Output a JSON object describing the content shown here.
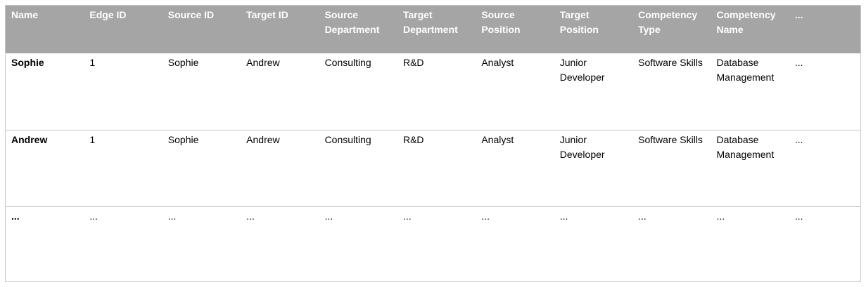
{
  "colors": {
    "header_background": "#a5a5a5",
    "header_text": "#ffffff",
    "row_border": "#c8c8c8"
  },
  "table": {
    "headers": [
      "Name",
      "Edge ID",
      "Source ID",
      "Target ID",
      "Source Department",
      "Target Department",
      "Source Position",
      "Target Position",
      "Competency Type",
      "Competency Name",
      "..."
    ],
    "rows": [
      [
        "Sophie",
        "1",
        "Sophie",
        "Andrew",
        "Consulting",
        "R&D",
        "Analyst",
        "Junior Developer",
        "Software Skills",
        "Database Management",
        "..."
      ],
      [
        "Andrew",
        "1",
        "Sophie",
        "Andrew",
        "Consulting",
        "R&D",
        "Analyst",
        "Junior Developer",
        "Software Skills",
        "Database Management",
        "..."
      ],
      [
        "...",
        "...",
        "...",
        "...",
        "...",
        "...",
        "...",
        "...",
        "...",
        "...",
        "..."
      ]
    ]
  }
}
